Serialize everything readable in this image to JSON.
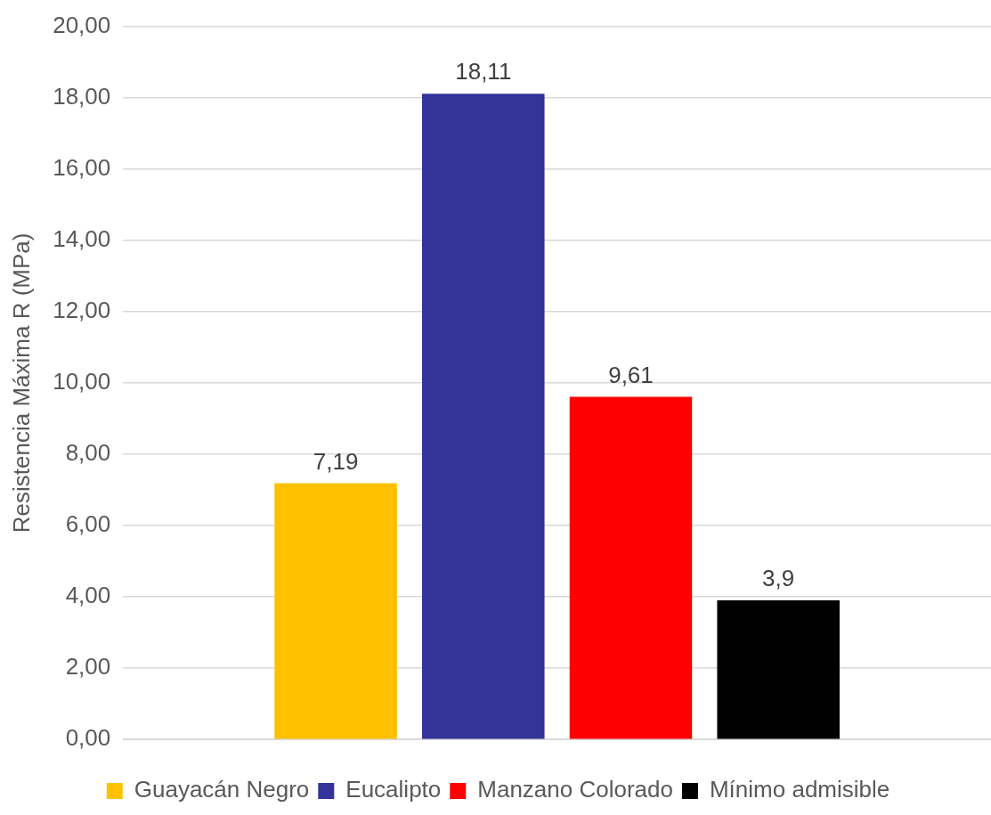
{
  "chart_data": {
    "type": "bar",
    "ylabel": "Resistencia Máxima R (MPa)",
    "categories": [
      null
    ],
    "series": [
      {
        "name": "Guayacán Negro",
        "color": "#ffc000",
        "values": [
          7.19
        ],
        "value_labels": [
          "7,19"
        ]
      },
      {
        "name": "Eucalipto",
        "color": "#333399",
        "values": [
          18.11
        ],
        "value_labels": [
          "18,11"
        ]
      },
      {
        "name": "Manzano Colorado",
        "color": "#ff0000",
        "values": [
          9.61
        ],
        "value_labels": [
          "9,61"
        ]
      },
      {
        "name": "Mínimo admisible",
        "color": "#000000",
        "values": [
          3.9
        ],
        "value_labels": [
          "3,9"
        ]
      }
    ],
    "ylim": [
      0,
      20
    ],
    "yticks": [
      {
        "value": 0,
        "label": "0,00"
      },
      {
        "value": 2,
        "label": "2,00"
      },
      {
        "value": 4,
        "label": "4,00"
      },
      {
        "value": 6,
        "label": "6,00"
      },
      {
        "value": 8,
        "label": "8,00"
      },
      {
        "value": 10,
        "label": "10,00"
      },
      {
        "value": 12,
        "label": "12,00"
      },
      {
        "value": 14,
        "label": "14,00"
      },
      {
        "value": 16,
        "label": "16,00"
      },
      {
        "value": 18,
        "label": "18,00"
      },
      {
        "value": 20,
        "label": "20,00"
      }
    ],
    "grid": "y",
    "legend": "bottom"
  }
}
